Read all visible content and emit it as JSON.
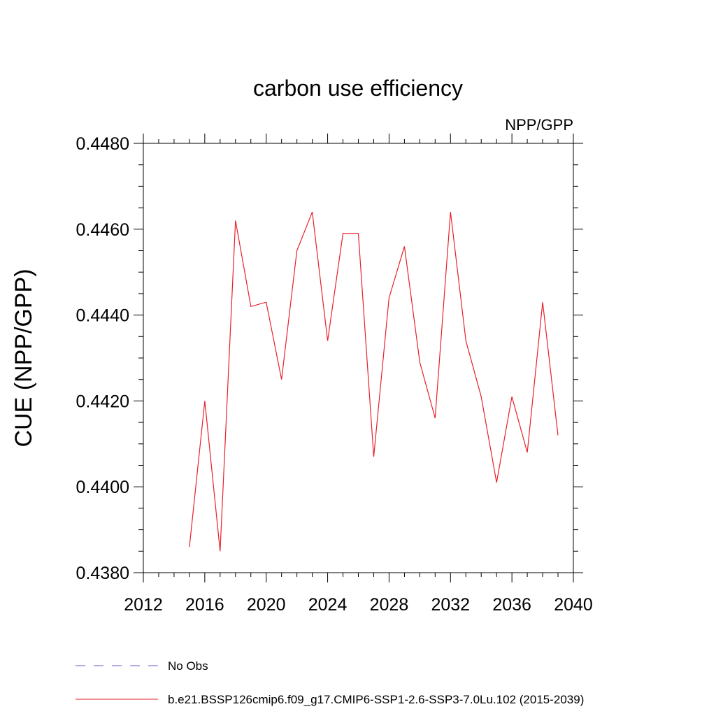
{
  "chart_data": {
    "type": "line",
    "title": "carbon use efficiency",
    "subtitle": "NPP/GPP",
    "xlabel": "",
    "ylabel": "CUE  (NPP/GPP)",
    "xlim": [
      2012,
      2040
    ],
    "ylim": [
      0.438,
      0.448
    ],
    "x_ticks": [
      2012,
      2016,
      2020,
      2024,
      2028,
      2032,
      2036,
      2040
    ],
    "x_tick_labels": [
      "2012",
      "2016",
      "2020",
      "2024",
      "2028",
      "2032",
      "2036",
      "2040"
    ],
    "y_ticks": [
      0.438,
      0.44,
      0.442,
      0.444,
      0.446,
      0.448
    ],
    "y_tick_labels": [
      "0.4380",
      "0.4400",
      "0.4420",
      "0.4440",
      "0.4460",
      "0.4480"
    ],
    "grid": false,
    "legend_placement": "bottom",
    "series": [
      {
        "name": "b.e21.BSSP126cmip6.f09_g17.CMIP6-SSP1-2.6-SSP3-7.0Lu.102 (2015-2039)",
        "color": "#e8202a",
        "style": "solid",
        "x": [
          2015,
          2016,
          2017,
          2018,
          2019,
          2020,
          2021,
          2022,
          2023,
          2024,
          2025,
          2026,
          2027,
          2028,
          2029,
          2030,
          2031,
          2032,
          2033,
          2034,
          2035,
          2036,
          2037,
          2038,
          2039
        ],
        "y": [
          0.4386,
          0.442,
          0.4385,
          0.4462,
          0.4442,
          0.4443,
          0.4425,
          0.4455,
          0.4464,
          0.4434,
          0.4459,
          0.4459,
          0.4407,
          0.4444,
          0.4456,
          0.4429,
          0.4416,
          0.4464,
          0.4434,
          0.4421,
          0.4401,
          0.4421,
          0.4408,
          0.4443,
          0.4412
        ]
      }
    ],
    "legend": [
      {
        "label": "No Obs",
        "color": "#6a5acd",
        "style": "dashed"
      },
      {
        "label": "b.e21.BSSP126cmip6.f09_g17.CMIP6-SSP1-2.6-SSP3-7.0Lu.102 (2015-2039)",
        "color": "#e8202a",
        "style": "solid"
      }
    ]
  }
}
